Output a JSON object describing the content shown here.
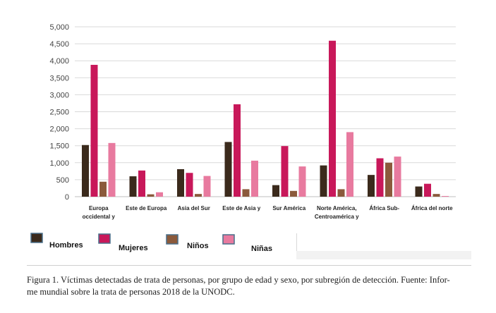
{
  "chart_data": {
    "type": "bar",
    "title": "",
    "xlabel": "",
    "ylabel": "",
    "ylim": [
      0,
      5000
    ],
    "yticks": [
      "0",
      "500",
      "1,000",
      "1,500",
      "2,000",
      "2,500",
      "3,000",
      "3,500",
      "4,000",
      "4,500",
      "5,000"
    ],
    "ytick_values": [
      0,
      500,
      1000,
      1500,
      2000,
      2500,
      3000,
      3500,
      4000,
      4500,
      5000
    ],
    "grid": true,
    "legend_position": "bottom",
    "categories": [
      [
        "Europa",
        "occidental y"
      ],
      [
        "Este de Europa"
      ],
      [
        "Asia del Sur"
      ],
      [
        "Este de Asia y"
      ],
      [
        "Sur América"
      ],
      [
        "Norte América,",
        "Centroamérica y"
      ],
      [
        "África Sub-"
      ],
      [
        "África del norte"
      ]
    ],
    "series": [
      {
        "name": "Hombres",
        "color": "#3b2a1c",
        "values": [
          1520,
          600,
          810,
          1610,
          340,
          920,
          640,
          300
        ]
      },
      {
        "name": "Mujeres",
        "color": "#c8185a",
        "values": [
          3880,
          770,
          700,
          2720,
          1490,
          4590,
          1130,
          380
        ]
      },
      {
        "name": "Niños",
        "color": "#8b5a3c",
        "values": [
          440,
          70,
          80,
          220,
          170,
          220,
          1000,
          80
        ]
      },
      {
        "name": "Niñas",
        "color": "#e87a9f",
        "values": [
          1580,
          130,
          610,
          1060,
          890,
          1900,
          1180,
          20
        ]
      }
    ]
  },
  "caption": "Figura 1. Víctimas detectadas de trata de personas, por grupo de edad y sexo, por subregión de detección. Fuente: Informe mundial sobre la trata de personas 2018 de la UNODC.",
  "caption_lines": [
    "Figura 1. Víctimas detectadas de trata de personas, por grupo de edad y sexo, por subregión de detección. Fuente: Infor-",
    "me mundial sobre la trata de personas 2018 de la UNODC."
  ]
}
